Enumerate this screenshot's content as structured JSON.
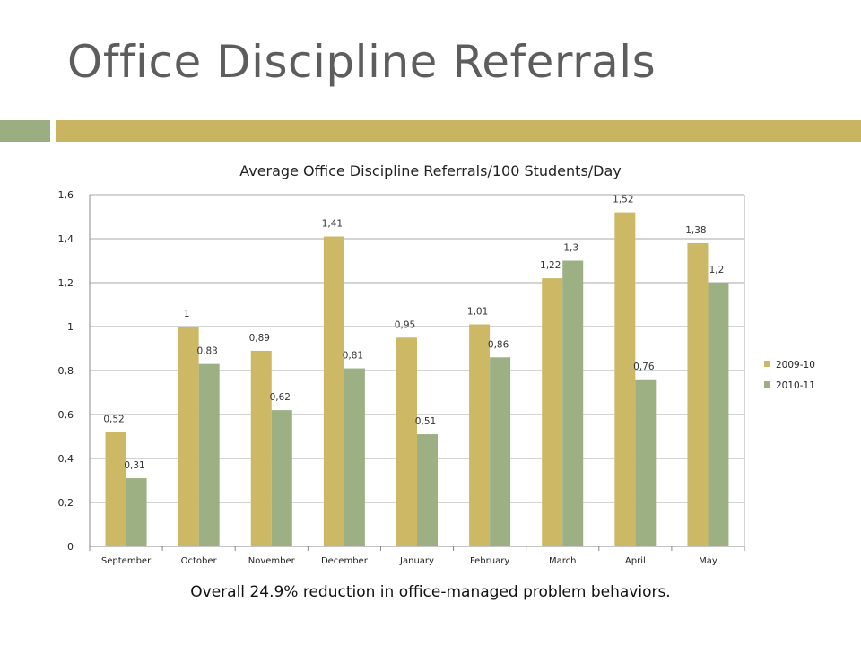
{
  "slide": {
    "title": "Office Discipline Referrals",
    "caption": "Overall 24.9% reduction in office-managed problem behaviors.",
    "accent_color": "#c9b462",
    "accent_small_color": "#9aae82"
  },
  "chart_data": {
    "type": "bar",
    "title": "Average Office Discipline Referrals/100 Students/Day",
    "categories": [
      "September",
      "October",
      "November",
      "December",
      "January",
      "February",
      "March",
      "April",
      "May"
    ],
    "series": [
      {
        "name": "2009-10",
        "values": [
          0.52,
          1,
          0.89,
          1.41,
          0.95,
          1.01,
          1.22,
          1.52,
          1.38
        ],
        "labels": [
          "0,52",
          "1",
          "0,89",
          "1,41",
          "0,95",
          "1,01",
          "1,22",
          "1,52",
          "1,38"
        ],
        "color": "#cdb865"
      },
      {
        "name": "2010-11",
        "values": [
          0.31,
          0.83,
          0.62,
          0.81,
          0.51,
          0.86,
          1.3,
          0.76,
          1.2
        ],
        "labels": [
          "0,31",
          "0,83",
          "0,62",
          "0,81",
          "0,51",
          "0,86",
          "1,3",
          "0,76",
          "1,2"
        ],
        "color": "#9cb084"
      }
    ],
    "ylim": [
      0,
      1.6
    ],
    "yticks": [
      0,
      0.2,
      0.4,
      0.6,
      0.8,
      1,
      1.2,
      1.4,
      1.6
    ],
    "ytick_labels": [
      "0",
      "0,2",
      "0,4",
      "0,6",
      "0,8",
      "1",
      "1,2",
      "1,4",
      "1,6"
    ],
    "grid": true,
    "legend": "right"
  }
}
